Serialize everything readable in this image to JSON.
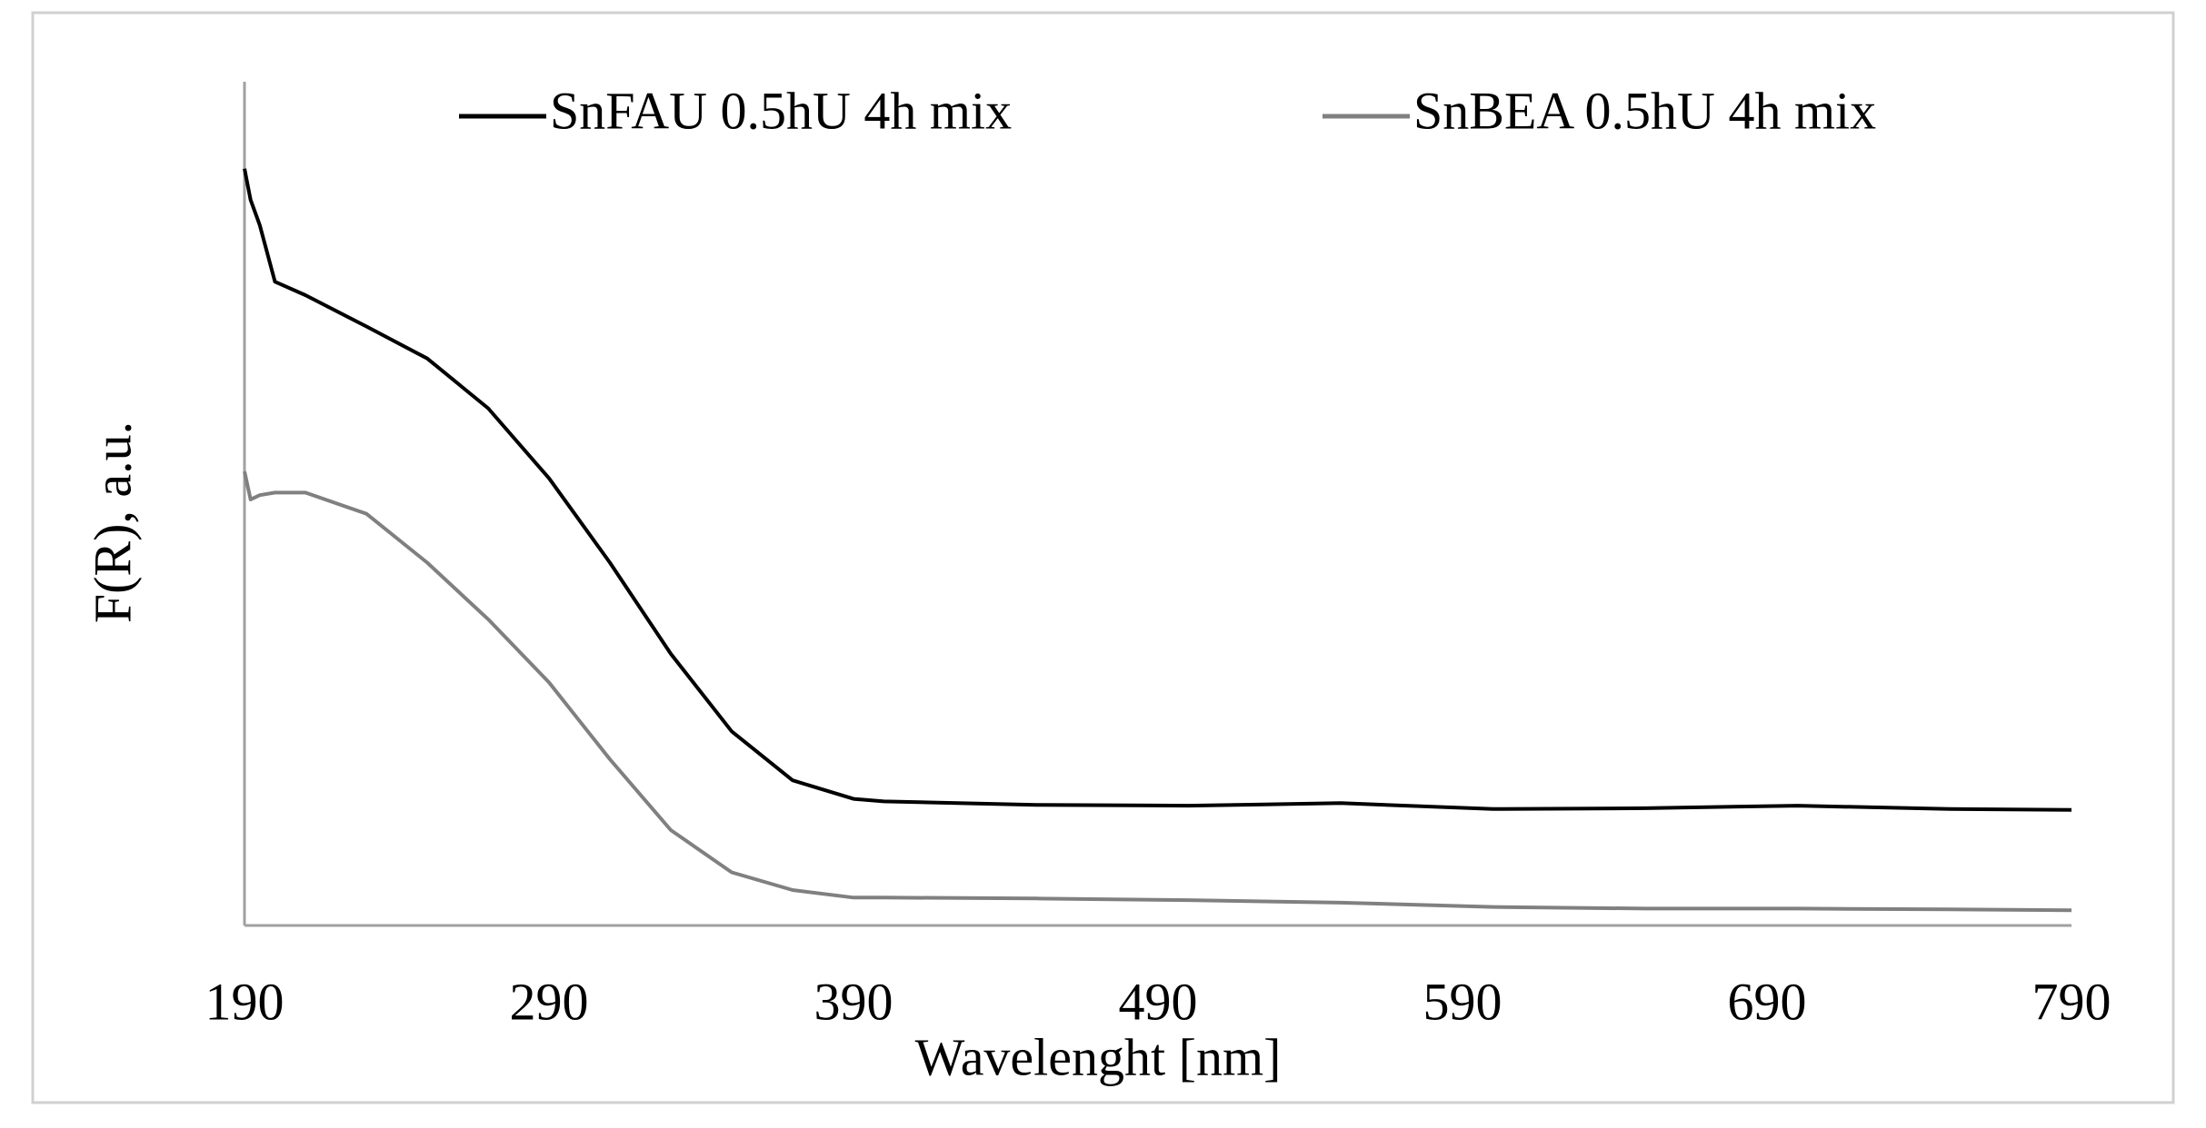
{
  "chart_data": {
    "type": "line",
    "x_label": "Wavelenght  [nm]",
    "y_label": "F(R), a.u.",
    "x": [
      190,
      192,
      195,
      200,
      210,
      230,
      250,
      270,
      290,
      310,
      330,
      350,
      370,
      390,
      400,
      450,
      500,
      550,
      600,
      650,
      700,
      750,
      790
    ],
    "series": [
      {
        "name": "SnFAU 0.5hU 4h mix",
        "color": "#000000",
        "values": [
          8.97,
          8.6,
          8.3,
          7.63,
          7.47,
          7.1,
          6.72,
          6.13,
          5.3,
          4.3,
          3.22,
          2.3,
          1.72,
          1.5,
          1.47,
          1.43,
          1.42,
          1.45,
          1.38,
          1.39,
          1.42,
          1.38,
          1.37
        ]
      },
      {
        "name": "SnBEA 0.5hU 4h mix",
        "color": "#808080",
        "values": [
          5.38,
          5.05,
          5.1,
          5.13,
          5.13,
          4.88,
          4.3,
          3.63,
          2.88,
          1.97,
          1.13,
          0.63,
          0.42,
          0.33,
          0.33,
          0.32,
          0.3,
          0.27,
          0.22,
          0.2,
          0.2,
          0.19,
          0.18
        ]
      }
    ],
    "xlim": [
      190,
      790
    ],
    "xticks": [
      190,
      290,
      390,
      490,
      590,
      690,
      790
    ],
    "ylim": [
      0,
      10
    ],
    "legend": "top",
    "grid": false
  }
}
